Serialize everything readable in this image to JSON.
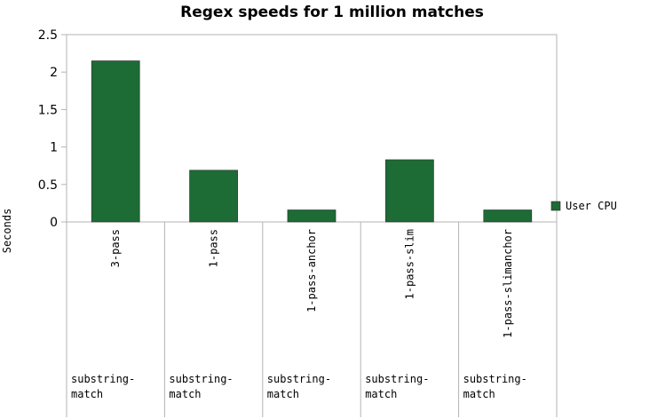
{
  "chart_data": {
    "type": "bar",
    "title": "Regex speeds for 1 million matches",
    "ylabel": "Seconds",
    "xlabel": "",
    "ylim": [
      0,
      2.5
    ],
    "yticks": [
      "0",
      "0.5",
      "1",
      "1.5",
      "2",
      "2.5"
    ],
    "grid": false,
    "legend_position": "right",
    "categories": [
      "3-pass",
      "1-pass",
      "1-pass-anchor",
      "1-pass-slim",
      "1-pass-slimanchor"
    ],
    "groups": [
      "substring-match",
      "substring-match",
      "substring-match",
      "substring-match",
      "substring-match"
    ],
    "series": [
      {
        "name": "User CPU",
        "color": "#1d6b35",
        "values": [
          2.15,
          0.69,
          0.16,
          0.83,
          0.16
        ]
      }
    ]
  }
}
